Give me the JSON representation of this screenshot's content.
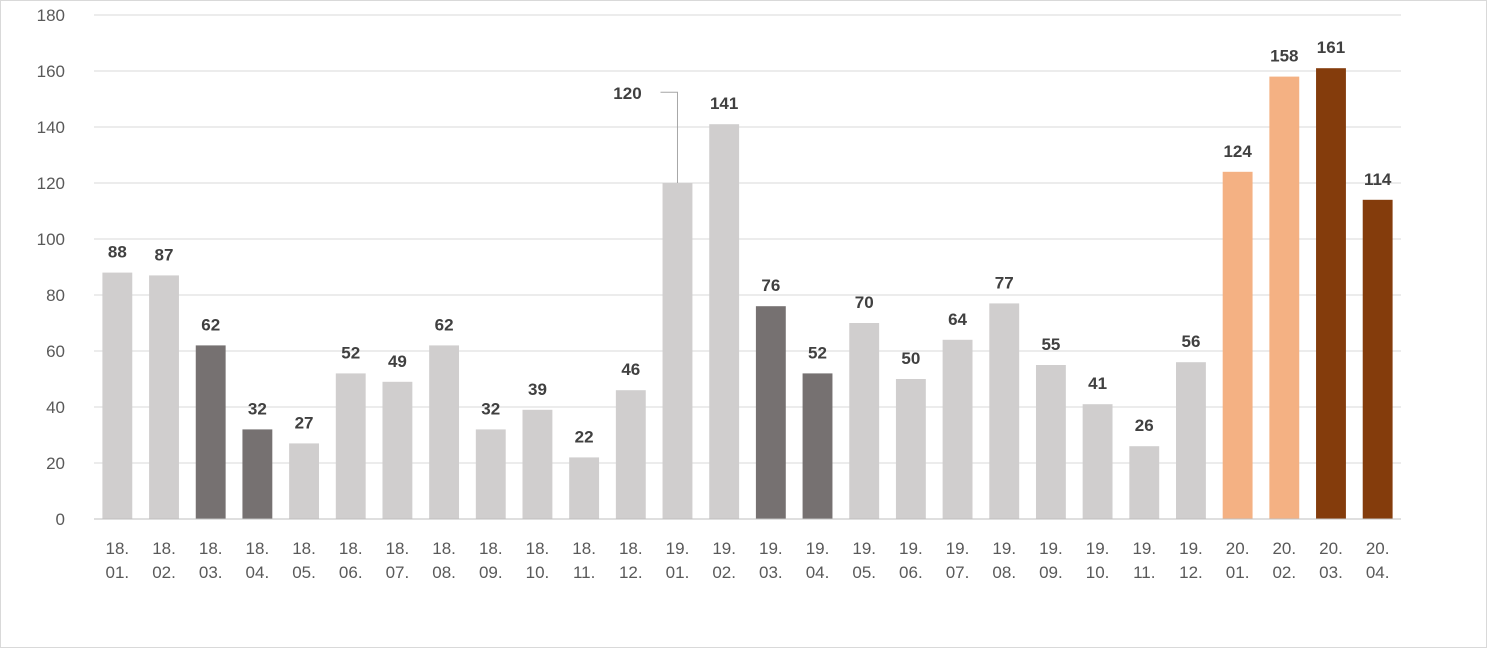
{
  "chart_data": {
    "type": "bar",
    "title": "",
    "xlabel": "",
    "ylabel": "",
    "ylim": [
      0,
      180
    ],
    "yticks": [
      0,
      20,
      40,
      60,
      80,
      100,
      120,
      140,
      160,
      180
    ],
    "grid": true,
    "legend": "none",
    "categories": [
      [
        "18.",
        "01."
      ],
      [
        "18.",
        "02."
      ],
      [
        "18.",
        "03."
      ],
      [
        "18.",
        "04."
      ],
      [
        "18.",
        "05."
      ],
      [
        "18.",
        "06."
      ],
      [
        "18.",
        "07."
      ],
      [
        "18.",
        "08."
      ],
      [
        "18.",
        "09."
      ],
      [
        "18.",
        "10."
      ],
      [
        "18.",
        "11."
      ],
      [
        "18.",
        "12."
      ],
      [
        "19.",
        "01."
      ],
      [
        "19.",
        "02."
      ],
      [
        "19.",
        "03."
      ],
      [
        "19.",
        "04."
      ],
      [
        "19.",
        "05."
      ],
      [
        "19.",
        "06."
      ],
      [
        "19.",
        "07."
      ],
      [
        "19.",
        "08."
      ],
      [
        "19.",
        "09."
      ],
      [
        "19.",
        "10."
      ],
      [
        "19.",
        "11."
      ],
      [
        "19.",
        "12."
      ],
      [
        "20.",
        "01."
      ],
      [
        "20.",
        "02."
      ],
      [
        "20.",
        "03."
      ],
      [
        "20.",
        "04."
      ]
    ],
    "values": [
      88,
      87,
      62,
      32,
      27,
      52,
      49,
      62,
      32,
      39,
      22,
      46,
      120,
      141,
      76,
      52,
      70,
      50,
      64,
      77,
      55,
      41,
      26,
      56,
      124,
      158,
      161,
      114
    ],
    "bar_colors": [
      "#d0cece",
      "#d0cece",
      "#767171",
      "#767171",
      "#d0cece",
      "#d0cece",
      "#d0cece",
      "#d0cece",
      "#d0cece",
      "#d0cece",
      "#d0cece",
      "#d0cece",
      "#d0cece",
      "#d0cece",
      "#767171",
      "#767171",
      "#d0cece",
      "#d0cece",
      "#d0cece",
      "#d0cece",
      "#d0cece",
      "#d0cece",
      "#d0cece",
      "#d0cece",
      "#f4b183",
      "#f4b183",
      "#843c0c",
      "#843c0c"
    ],
    "colors": {
      "grid": "#d9d9d9",
      "axis": "#bfbfbf",
      "tick_text": "#595959",
      "label_text": "#404040",
      "leader": "#a6a6a6"
    }
  }
}
